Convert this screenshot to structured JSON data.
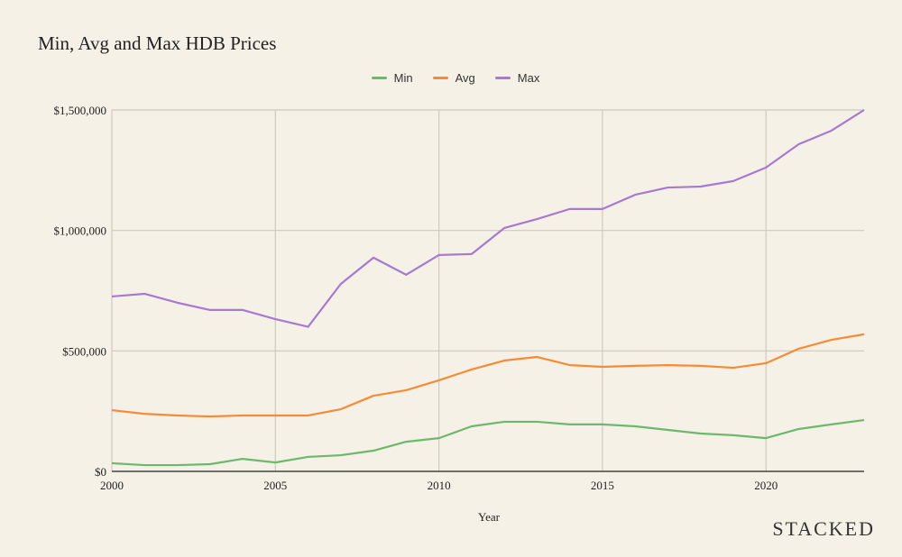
{
  "chart_data": {
    "type": "line",
    "title": "Min, Avg and Max HDB Prices",
    "xlabel": "Year",
    "ylabel": "",
    "xlim": [
      2000,
      2023
    ],
    "ylim": [
      0,
      1500000
    ],
    "grid": true,
    "legend_position": "top-center",
    "x_ticks": [
      2000,
      2005,
      2010,
      2015,
      2020
    ],
    "y_ticks": [
      0,
      500000,
      1000000,
      1500000
    ],
    "y_tick_labels": [
      "$0",
      "$500,000",
      "$1,000,000",
      "$1,500,000"
    ],
    "x": [
      2000,
      2001,
      2002,
      2003,
      2004,
      2005,
      2006,
      2007,
      2008,
      2009,
      2010,
      2011,
      2012,
      2013,
      2014,
      2015,
      2016,
      2017,
      2018,
      2019,
      2020,
      2021,
      2022,
      2023
    ],
    "series": [
      {
        "name": "Min",
        "color": "#6cb86c",
        "values": [
          34000,
          26000,
          26000,
          30000,
          52000,
          37000,
          60000,
          67000,
          86000,
          123000,
          138000,
          187000,
          206000,
          206000,
          195000,
          195000,
          187000,
          172000,
          157000,
          150000,
          138000,
          176000,
          195000,
          213000
        ]
      },
      {
        "name": "Avg",
        "color": "#f78b35",
        "values": [
          254000,
          239000,
          232000,
          228000,
          232000,
          232000,
          232000,
          258000,
          314000,
          337000,
          378000,
          423000,
          460000,
          475000,
          441000,
          434000,
          438000,
          441000,
          438000,
          430000,
          449000,
          509000,
          546000,
          569000
        ]
      },
      {
        "name": "Max",
        "color": "#a57ad0",
        "values": [
          726000,
          737000,
          700000,
          670000,
          670000,
          632000,
          600000,
          778000,
          887000,
          816000,
          898000,
          902000,
          1010000,
          1047000,
          1089000,
          1089000,
          1148000,
          1178000,
          1182000,
          1205000,
          1261000,
          1358000,
          1414000,
          1500000
        ]
      }
    ]
  },
  "brand": "STACKED"
}
